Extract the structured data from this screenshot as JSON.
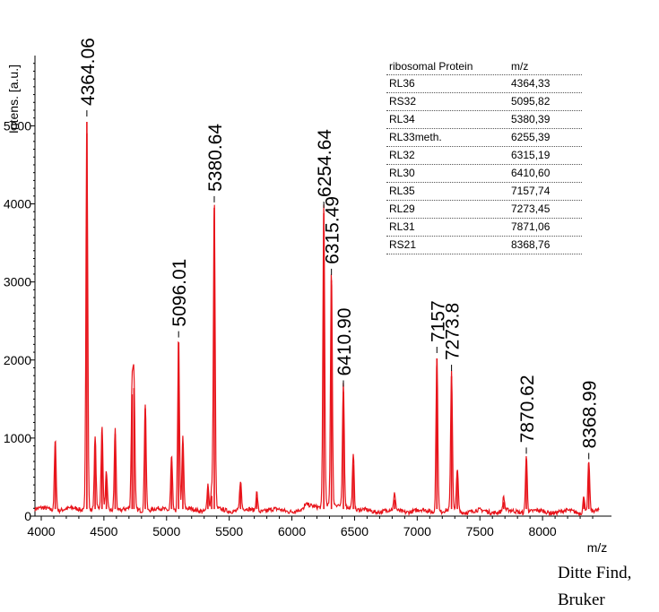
{
  "chart_data": {
    "type": "line",
    "ylabel": "Intens. [a.u.]",
    "xlabel": "m/z",
    "xlim": [
      3950,
      8550
    ],
    "ylim": [
      0,
      5900
    ],
    "x_ticks": [
      4000,
      4500,
      5000,
      5500,
      6000,
      6500,
      7000,
      7500,
      8000
    ],
    "x_tick_labels": [
      "4000",
      "4500",
      "5000",
      "5500",
      "6000",
      "6500",
      "7000",
      "7500",
      "8000"
    ],
    "y_ticks": [
      0,
      1000,
      2000,
      3000,
      4000,
      5000
    ],
    "y_tick_labels": [
      "0",
      "1000",
      "2000",
      "3000",
      "4000",
      "5000"
    ],
    "series_color": "#e8141b",
    "baseline": 90,
    "peaks": [
      {
        "x": 4112,
        "y": 900
      },
      {
        "x": 4364.06,
        "y": 5050
      },
      {
        "x": 4430,
        "y": 920
      },
      {
        "x": 4485,
        "y": 1040
      },
      {
        "x": 4520,
        "y": 480
      },
      {
        "x": 4590,
        "y": 1050
      },
      {
        "x": 4725,
        "y": 1560
      },
      {
        "x": 4740,
        "y": 1640
      },
      {
        "x": 4830,
        "y": 1380
      },
      {
        "x": 5040,
        "y": 700
      },
      {
        "x": 5096.01,
        "y": 2220
      },
      {
        "x": 5130,
        "y": 930
      },
      {
        "x": 5330,
        "y": 340
      },
      {
        "x": 5360,
        "y": 260
      },
      {
        "x": 5380.64,
        "y": 3950
      },
      {
        "x": 5590,
        "y": 380
      },
      {
        "x": 5720,
        "y": 240
      },
      {
        "x": 6254.64,
        "y": 3880
      },
      {
        "x": 6315.49,
        "y": 3020
      },
      {
        "x": 6410.9,
        "y": 1590
      },
      {
        "x": 6490,
        "y": 660
      },
      {
        "x": 6820,
        "y": 210
      },
      {
        "x": 7157,
        "y": 2020
      },
      {
        "x": 7273.8,
        "y": 1790
      },
      {
        "x": 7320,
        "y": 560
      },
      {
        "x": 7690,
        "y": 180
      },
      {
        "x": 7870.62,
        "y": 730
      },
      {
        "x": 8330,
        "y": 220
      },
      {
        "x": 8368.99,
        "y": 660
      }
    ],
    "peak_labels": [
      {
        "x": 4364.06,
        "y": 5050,
        "label": "4364.06"
      },
      {
        "x": 5096.01,
        "y": 2220,
        "label": "5096.01"
      },
      {
        "x": 5380.64,
        "y": 3950,
        "label": "5380.64"
      },
      {
        "x": 6254.64,
        "y": 3880,
        "label": "6254.64"
      },
      {
        "x": 6315.49,
        "y": 3020,
        "label": "6315.49"
      },
      {
        "x": 6410.9,
        "y": 1590,
        "label": "6410.90"
      },
      {
        "x": 7157,
        "y": 2020,
        "label": "7157"
      },
      {
        "x": 7273.8,
        "y": 1790,
        "label": "7273.8"
      },
      {
        "x": 7870.62,
        "y": 730,
        "label": "7870.62"
      },
      {
        "x": 8368.99,
        "y": 660,
        "label": "8368.99"
      }
    ]
  },
  "table": {
    "headers": [
      "ribosomal Protein",
      "m/z"
    ],
    "rows": [
      [
        "RL36",
        "4364,33"
      ],
      [
        "RS32",
        "5095,82"
      ],
      [
        "RL34",
        "5380,39"
      ],
      [
        "RL33meth.",
        "6255,39"
      ],
      [
        "RL32",
        "6315,19"
      ],
      [
        "RL30",
        "6410,60"
      ],
      [
        "RL35",
        "7157,74"
      ],
      [
        "RL29",
        "7273,45"
      ],
      [
        "RL31",
        "7871,06"
      ],
      [
        "RS21",
        "8368,76"
      ]
    ]
  },
  "footer": {
    "line1": "Ditte Find,",
    "line2": "Bruker"
  }
}
